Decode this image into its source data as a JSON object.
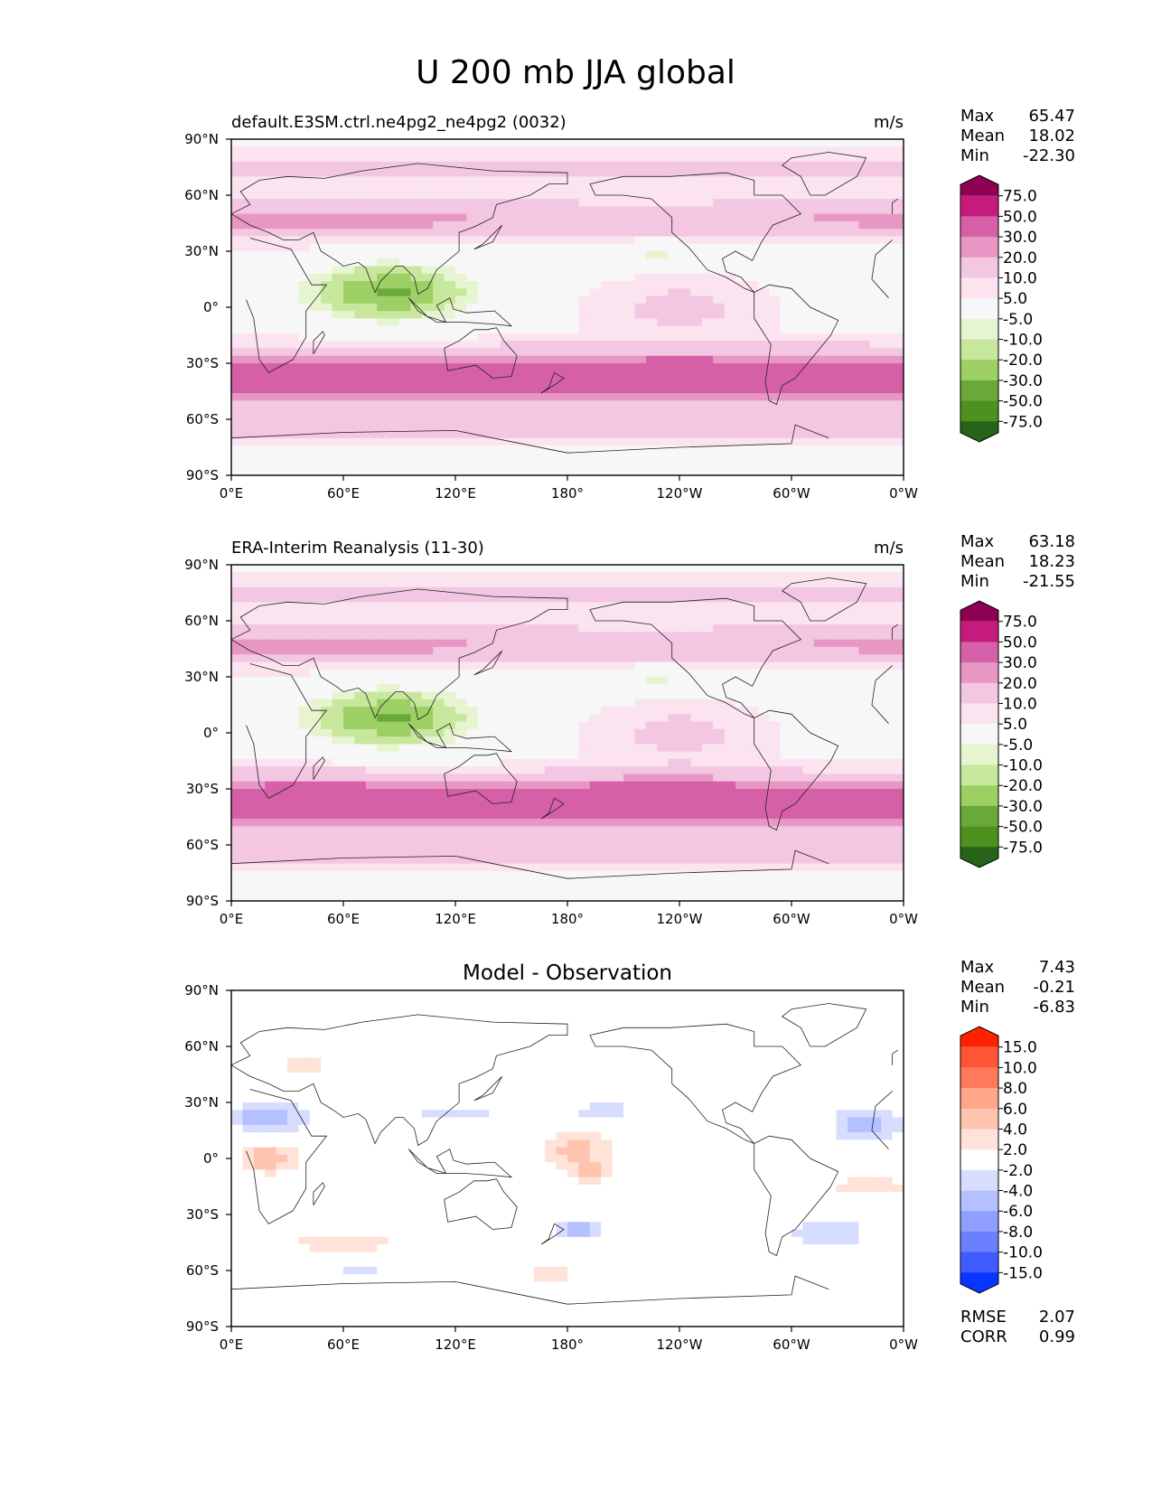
{
  "figure": {
    "title": "U 200 mb JJA global"
  },
  "chart_data": [
    {
      "type": "heatmap",
      "title": "default.E3SM.ctrl.ne4pg2_ne4pg2 (0032)",
      "units": "m/s",
      "stats": [
        {
          "label": "Max",
          "value": "65.47"
        },
        {
          "label": "Mean",
          "value": "18.02"
        },
        {
          "label": "Min",
          "value": "-22.30"
        }
      ],
      "colorbar": {
        "levels": [
          "75.0",
          "50.0",
          "30.0",
          "20.0",
          "10.0",
          "5.0",
          "-5.0",
          "-10.0",
          "-20.0",
          "-30.0",
          "-50.0",
          "-75.0"
        ],
        "colors": [
          "#8e0152",
          "#c51b7d",
          "#d660a8",
          "#e897c4",
          "#f3c6e1",
          "#fbe3f0",
          "#f7f7f7",
          "#e6f5d0",
          "#c6e79c",
          "#9ccf64",
          "#6aa83a",
          "#4d9221",
          "#276419"
        ]
      },
      "x_ticks": [
        "0°E",
        "60°E",
        "120°E",
        "180°",
        "120°W",
        "60°W",
        "0°W"
      ],
      "y_ticks": [
        "90°N",
        "60°N",
        "30°N",
        "0°",
        "30°S",
        "60°S",
        "90°S"
      ]
    },
    {
      "type": "heatmap",
      "title": "ERA-Interim Reanalysis (11-30)",
      "units": "m/s",
      "stats": [
        {
          "label": "Max",
          "value": "63.18"
        },
        {
          "label": "Mean",
          "value": "18.23"
        },
        {
          "label": "Min",
          "value": "-21.55"
        }
      ],
      "colorbar": {
        "levels": [
          "75.0",
          "50.0",
          "30.0",
          "20.0",
          "10.0",
          "5.0",
          "-5.0",
          "-10.0",
          "-20.0",
          "-30.0",
          "-50.0",
          "-75.0"
        ],
        "colors": [
          "#8e0152",
          "#c51b7d",
          "#d660a8",
          "#e897c4",
          "#f3c6e1",
          "#fbe3f0",
          "#f7f7f7",
          "#e6f5d0",
          "#c6e79c",
          "#9ccf64",
          "#6aa83a",
          "#4d9221",
          "#276419"
        ]
      },
      "x_ticks": [
        "0°E",
        "60°E",
        "120°E",
        "180°",
        "120°W",
        "60°W",
        "0°W"
      ],
      "y_ticks": [
        "90°N",
        "60°N",
        "30°N",
        "0°",
        "30°S",
        "60°S",
        "90°S"
      ]
    },
    {
      "type": "heatmap",
      "title": "Model - Observation",
      "units": "",
      "stats": [
        {
          "label": "Max",
          "value": "7.43"
        },
        {
          "label": "Mean",
          "value": "-0.21"
        },
        {
          "label": "Min",
          "value": "-6.83"
        }
      ],
      "extra_stats": [
        {
          "label": "RMSE",
          "value": "2.07"
        },
        {
          "label": "CORR",
          "value": "0.99"
        }
      ],
      "colorbar": {
        "levels": [
          "15.0",
          "10.0",
          "8.0",
          "6.0",
          "4.0",
          "2.0",
          "-2.0",
          "-4.0",
          "-6.0",
          "-8.0",
          "-10.0",
          "-15.0"
        ],
        "colors": [
          "#ff2200",
          "#ff5535",
          "#ff7a5a",
          "#ffa58a",
          "#ffc4b0",
          "#ffe2d8",
          "#ffffff",
          "#d6ddff",
          "#b4c0ff",
          "#8f9fff",
          "#6a80ff",
          "#3f5dff",
          "#0a34ff"
        ]
      },
      "x_ticks": [
        "0°E",
        "60°E",
        "120°E",
        "180°",
        "120°W",
        "60°W",
        "0°W"
      ],
      "y_ticks": [
        "90°N",
        "60°N",
        "30°N",
        "0°",
        "30°S",
        "60°S",
        "90°S"
      ]
    }
  ]
}
